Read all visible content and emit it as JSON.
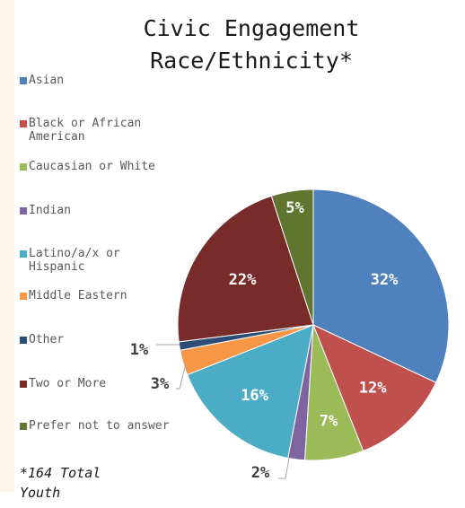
{
  "chart_data": {
    "type": "pie",
    "title_line1": "Civic Engagement",
    "title_line2": "Race/Ethnicity*",
    "slices": [
      {
        "name": "Asian",
        "value": 32,
        "label": "32%",
        "color": "#4f81bd",
        "label_color": "#ffffff"
      },
      {
        "name": "Black or African American",
        "value": 12,
        "label": "12%",
        "color": "#c0504d",
        "label_color": "#ffffff"
      },
      {
        "name": "Caucasian or White",
        "value": 7,
        "label": "7%",
        "color": "#9bbb59",
        "label_color": "#ffffff"
      },
      {
        "name": "Indian",
        "value": 2,
        "label": "2%",
        "color": "#8064a2",
        "label_color": "#404040"
      },
      {
        "name": "Latino/a/x or Hispanic",
        "value": 16,
        "label": "16%",
        "color": "#4bacc6",
        "label_color": "#ffffff"
      },
      {
        "name": "Middle Eastern",
        "value": 3,
        "label": "3%",
        "color": "#f79646",
        "label_color": "#404040"
      },
      {
        "name": "Other",
        "value": 1,
        "label": "1%",
        "color": "#2c4d75",
        "label_color": "#404040"
      },
      {
        "name": "Two or More",
        "value": 22,
        "label": "22%",
        "color": "#772c2a",
        "label_color": "#ffffff"
      },
      {
        "name": "Prefer not to answer",
        "value": 5,
        "label": "5%",
        "color": "#5f7530",
        "label_color": "#ffffff"
      }
    ],
    "legend_placement": "left",
    "footnote": "*164 Total Youth"
  }
}
